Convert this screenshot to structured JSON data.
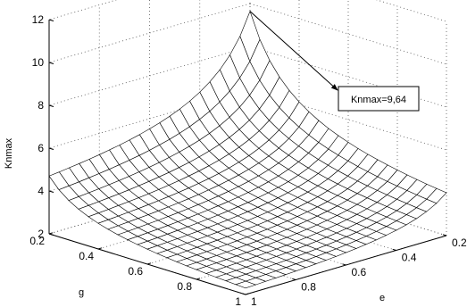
{
  "chart_data": {
    "type": "surface",
    "title": "",
    "xlabel": "e",
    "ylabel": "g",
    "zlabel": "Knmax",
    "e_ticks": [
      "0.2",
      "0.4",
      "0.6",
      "0.8",
      "1"
    ],
    "g_ticks": [
      "0.2",
      "0.4",
      "0.6",
      "0.8",
      "1"
    ],
    "z_ticks": [
      "2",
      "4",
      "6",
      "8",
      "10",
      "12"
    ],
    "e_range": [
      0.2,
      1
    ],
    "g_range": [
      0.2,
      1
    ],
    "z_range": [
      2,
      12
    ],
    "grid": true,
    "mesh_resolution": 21,
    "corners": {
      "e_0.2_g_0.2": 9.64,
      "e_1_g_0.2": 4.7,
      "e_0.2_g_1": 4.0,
      "e_1_g_1": 2.3
    },
    "annotation": {
      "text": "Knmax=9,64",
      "points_to": {
        "e": 0.2,
        "g": 0.2,
        "z": 9.64
      }
    }
  }
}
